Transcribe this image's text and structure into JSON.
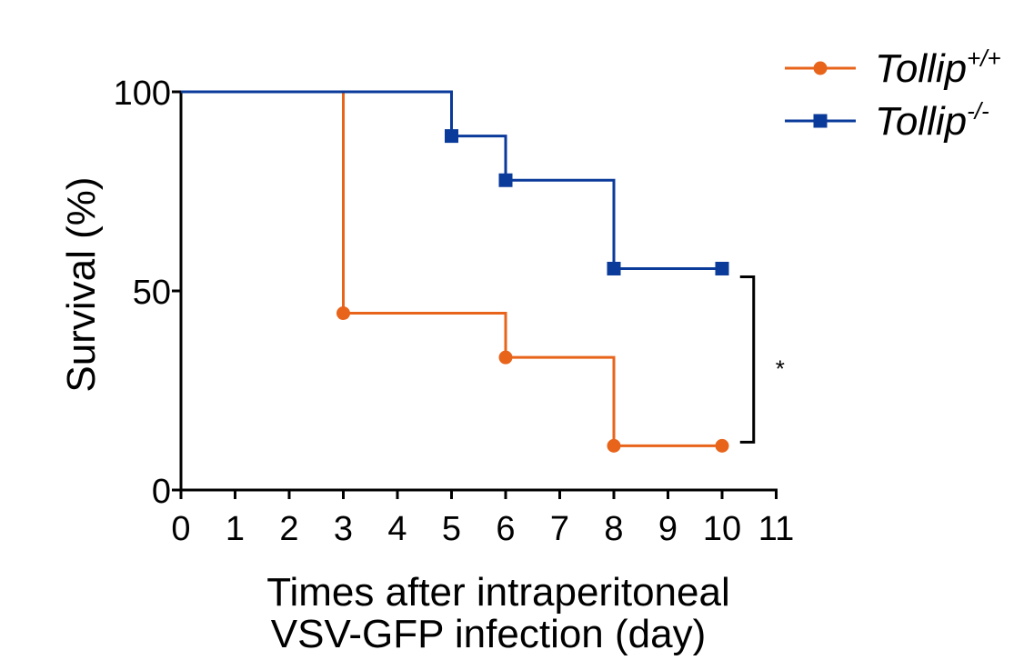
{
  "chart_data": {
    "type": "line",
    "step": true,
    "xlabel_lines": [
      "Times after intraperitoneal",
      "VSV-GFP infection (day)"
    ],
    "ylabel": "Survival (%)",
    "xlim": [
      0,
      11
    ],
    "ylim": [
      0,
      100
    ],
    "x_ticks": [
      "0",
      "1",
      "2",
      "3",
      "4",
      "5",
      "6",
      "7",
      "8",
      "9",
      "10",
      "11"
    ],
    "y_ticks": [
      "0",
      "50",
      "100"
    ],
    "grid": false,
    "legend_position": "top-right",
    "series": [
      {
        "name": "Tollip",
        "name_superscript": "+/+",
        "color": "#E8641B",
        "marker": "circle",
        "steps": [
          {
            "x": 0,
            "y": 100
          },
          {
            "x": 3,
            "y": 44.4
          },
          {
            "x": 6,
            "y": 33.3
          },
          {
            "x": 8,
            "y": 11.1
          },
          {
            "x": 10,
            "y": 11.1
          }
        ],
        "markers": [
          {
            "x": 3,
            "y": 44.4
          },
          {
            "x": 6,
            "y": 33.3
          },
          {
            "x": 8,
            "y": 11.1
          },
          {
            "x": 10,
            "y": 11.1
          }
        ]
      },
      {
        "name": "Tollip",
        "name_superscript": "-/-",
        "color": "#0A3A9A",
        "marker": "square",
        "steps": [
          {
            "x": 0,
            "y": 100
          },
          {
            "x": 5,
            "y": 88.9
          },
          {
            "x": 6,
            "y": 77.8
          },
          {
            "x": 8,
            "y": 55.6
          },
          {
            "x": 10,
            "y": 55.6
          }
        ],
        "markers": [
          {
            "x": 5,
            "y": 88.9
          },
          {
            "x": 6,
            "y": 77.8
          },
          {
            "x": 8,
            "y": 55.6
          },
          {
            "x": 10,
            "y": 55.6
          }
        ]
      }
    ],
    "annotations": [
      {
        "type": "significance-bracket",
        "label": "*",
        "x": 10.5,
        "y_from": 55.6,
        "y_to": 11.1
      }
    ]
  }
}
